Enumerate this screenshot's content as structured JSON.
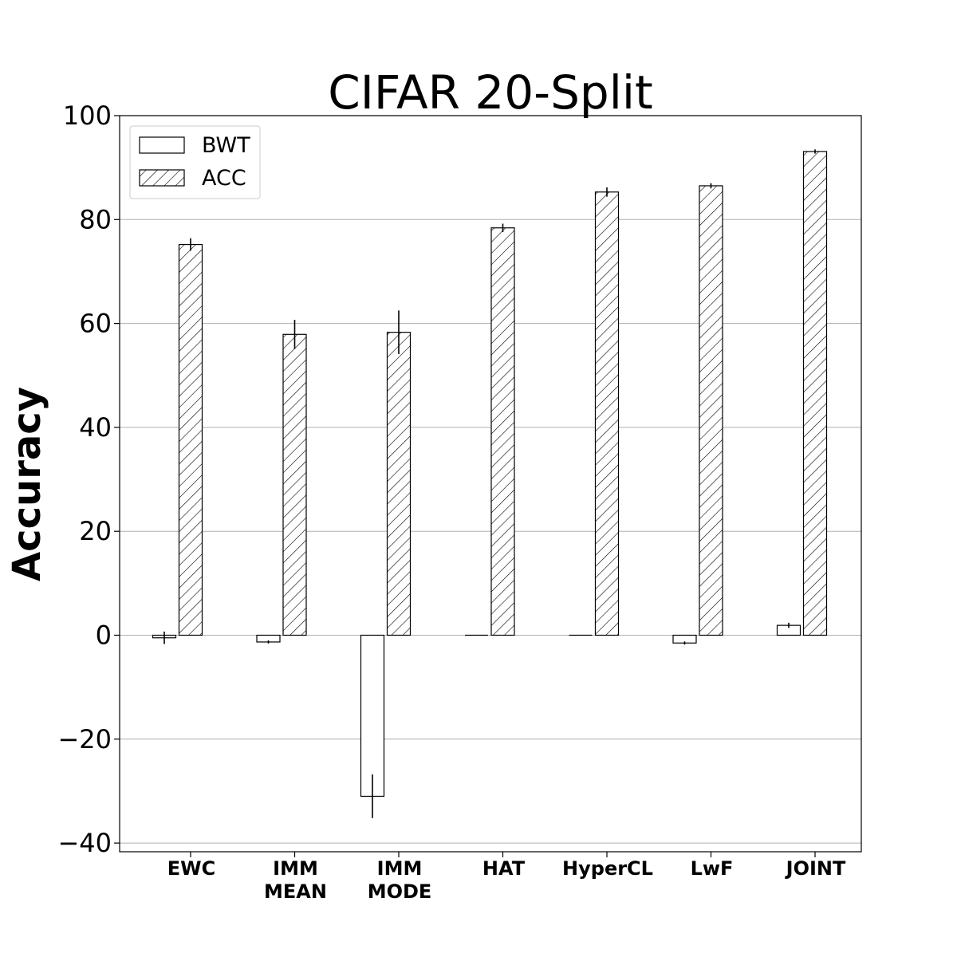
{
  "chart_data": {
    "type": "bar",
    "title": "CIFAR 20-Split",
    "xlabel": "",
    "ylabel": "Accuracy",
    "ylim": [
      -42,
      100
    ],
    "yticks": [
      -40,
      -20,
      0,
      20,
      40,
      60,
      80,
      100
    ],
    "ytick_labels": [
      "−40",
      "−20",
      "0",
      "20",
      "40",
      "60",
      "80",
      "100"
    ],
    "grid": "horizontal",
    "legend_position": "top-left",
    "categories": [
      [
        "EWC"
      ],
      [
        "IMM",
        "MEAN"
      ],
      [
        "IMM",
        "MODE"
      ],
      [
        "HAT"
      ],
      [
        "HyperCL"
      ],
      [
        "LwF"
      ],
      [
        "JOINT"
      ]
    ],
    "series": [
      {
        "name": "BWT",
        "pattern": "none",
        "values": [
          -0.5,
          -1.3,
          -31.0,
          0.0,
          0.0,
          -1.5,
          1.9
        ],
        "errors": [
          1.2,
          0.3,
          4.2,
          0.0,
          0.0,
          0.3,
          0.5
        ]
      },
      {
        "name": "ACC",
        "pattern": "hatch",
        "values": [
          75.2,
          57.9,
          58.3,
          78.4,
          85.3,
          86.5,
          93.1
        ],
        "errors": [
          1.2,
          2.8,
          4.2,
          0.8,
          0.9,
          0.5,
          0.4
        ]
      }
    ],
    "colors": {
      "fill": "#ffffff",
      "edge": "#000000",
      "grid": "#b0b0b0"
    }
  }
}
